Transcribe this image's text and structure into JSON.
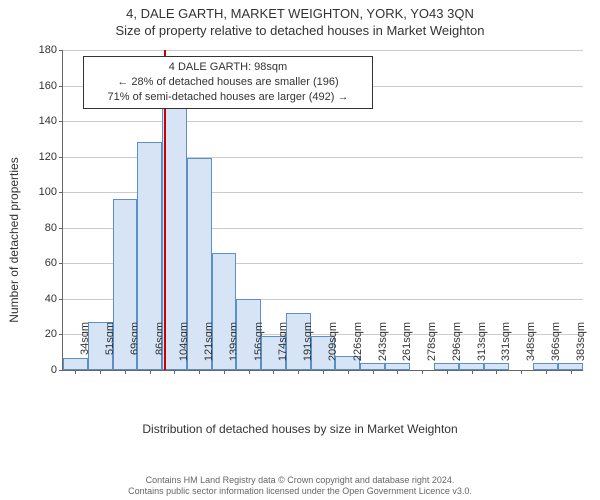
{
  "title_main": "4, DALE GARTH, MARKET WEIGHTON, YORK, YO43 3QN",
  "title_sub": "Size of property relative to detached houses in Market Weighton",
  "ylabel": "Number of detached properties",
  "xlabel": "Distribution of detached houses by size in Market Weighton",
  "chart": {
    "type": "histogram",
    "ylim": [
      0,
      180
    ],
    "ytick_step": 20,
    "background_color": "#ffffff",
    "grid_color": "#cccccc",
    "axis_color": "#666666",
    "tick_fontsize": 11,
    "label_fontsize": 12,
    "title_fontsize": 13,
    "bar_fill": "#d6e4f5",
    "bar_stroke": "#5a8fc8",
    "bar_stroke_width": 1,
    "categories": [
      "34sqm",
      "51sqm",
      "69sqm",
      "86sqm",
      "104sqm",
      "121sqm",
      "139sqm",
      "156sqm",
      "174sqm",
      "191sqm",
      "209sqm",
      "226sqm",
      "243sqm",
      "261sqm",
      "278sqm",
      "296sqm",
      "313sqm",
      "331sqm",
      "348sqm",
      "366sqm",
      "383sqm"
    ],
    "values": [
      7,
      27,
      96,
      128,
      157,
      119,
      66,
      40,
      19,
      32,
      19,
      8,
      4,
      4,
      0,
      4,
      4,
      4,
      0,
      4,
      4
    ],
    "marker": {
      "value_sqm": 98,
      "line_color": "#c80000",
      "line_width": 2,
      "frac_pos": 0.195
    },
    "annotation": {
      "lines": [
        "4 DALE GARTH: 98sqm",
        "← 28% of detached houses are smaller (196)",
        "71% of semi-detached houses are larger (492) →"
      ],
      "border_color": "#333333",
      "bg_color": "#ffffff"
    }
  },
  "footer_line1": "Contains HM Land Registry data © Crown copyright and database right 2024.",
  "footer_line2": "Contains public sector information licensed under the Open Government Licence v3.0."
}
